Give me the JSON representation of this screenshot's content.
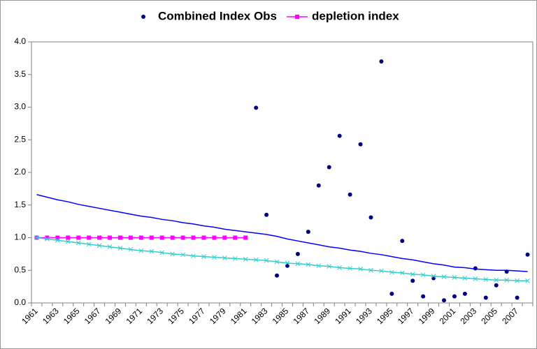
{
  "chart_data": {
    "type": "line",
    "categories": [
      "1961",
      null,
      "1963",
      null,
      "1965",
      null,
      "1967",
      null,
      "1969",
      null,
      "1971",
      null,
      "1973",
      null,
      "1975",
      null,
      "1977",
      null,
      "1979",
      null,
      "1981",
      null,
      "1983",
      null,
      "1985",
      null,
      "1987",
      null,
      "1989",
      null,
      "1991",
      null,
      "1993",
      null,
      "1995",
      null,
      "1997",
      null,
      "1999",
      null,
      "2001",
      null,
      "2003",
      null,
      "2005",
      null,
      "2007",
      null
    ],
    "series": [
      {
        "name": "Combined Index Obs",
        "color": "#000080",
        "style": "markers",
        "marker": "circle",
        "values": [
          null,
          null,
          null,
          null,
          null,
          null,
          null,
          null,
          null,
          null,
          null,
          null,
          null,
          null,
          null,
          null,
          null,
          null,
          null,
          null,
          null,
          2.99,
          1.35,
          0.42,
          0.57,
          0.75,
          1.09,
          1.8,
          2.08,
          2.56,
          1.66,
          2.43,
          1.31,
          3.7,
          0.14,
          0.95,
          0.34,
          0.1,
          0.38,
          0.04,
          0.1,
          0.14,
          0.53,
          0.08,
          0.27,
          0.48,
          0.08,
          0.74
        ]
      },
      {
        "name": "depletion index",
        "color": "#ff00ff",
        "style": "line",
        "marker": "square",
        "values": [
          1,
          1,
          1,
          1,
          1,
          1,
          1,
          1,
          1,
          1,
          1,
          1,
          1,
          1,
          1,
          1,
          1,
          1,
          1,
          1,
          1,
          null,
          null,
          null,
          null,
          null,
          null,
          null,
          null,
          null,
          null,
          null,
          null,
          null,
          null,
          null,
          null,
          null,
          null,
          null,
          null,
          null,
          null,
          null,
          null,
          null,
          null,
          null
        ]
      },
      {
        "color": "#0000ff",
        "style": "line",
        "values": [
          1.66,
          1.62,
          1.58,
          1.55,
          1.51,
          1.48,
          1.45,
          1.42,
          1.39,
          1.36,
          1.33,
          1.31,
          1.28,
          1.26,
          1.23,
          1.21,
          1.18,
          1.16,
          1.13,
          1.11,
          1.09,
          1.07,
          1.05,
          1.02,
          0.98,
          0.95,
          0.92,
          0.89,
          0.86,
          0.84,
          0.81,
          0.79,
          0.76,
          0.74,
          0.71,
          0.68,
          0.66,
          0.63,
          0.6,
          0.58,
          0.55,
          0.54,
          0.52,
          0.51,
          0.5,
          0.5,
          0.49,
          0.48
        ]
      },
      {
        "color": "#33cccc",
        "style": "line",
        "marker": "x",
        "values": [
          1.0,
          0.98,
          0.96,
          0.94,
          0.92,
          0.9,
          0.88,
          0.86,
          0.84,
          0.82,
          0.8,
          0.79,
          0.77,
          0.75,
          0.74,
          0.72,
          0.71,
          0.7,
          0.69,
          0.68,
          0.67,
          0.66,
          0.65,
          0.63,
          0.61,
          0.6,
          0.59,
          0.57,
          0.56,
          0.54,
          0.53,
          0.52,
          0.5,
          0.49,
          0.47,
          0.46,
          0.44,
          0.43,
          0.41,
          0.4,
          0.39,
          0.38,
          0.37,
          0.36,
          0.35,
          0.35,
          0.34,
          0.34
        ]
      }
    ],
    "ylim": [
      0,
      4
    ],
    "yticks": [
      {
        "value": 0,
        "label": "0.0"
      },
      {
        "value": 0.5,
        "label": "0.5"
      },
      {
        "value": 1,
        "label": "1.0"
      },
      {
        "value": 1.5,
        "label": "1.5"
      },
      {
        "value": 2,
        "label": "2.0"
      },
      {
        "value": 2.5,
        "label": "2.5"
      },
      {
        "value": 3,
        "label": "3.0"
      },
      {
        "value": 3.5,
        "label": "3.5"
      },
      {
        "value": 4,
        "label": "4.0"
      }
    ],
    "legend": "top"
  }
}
